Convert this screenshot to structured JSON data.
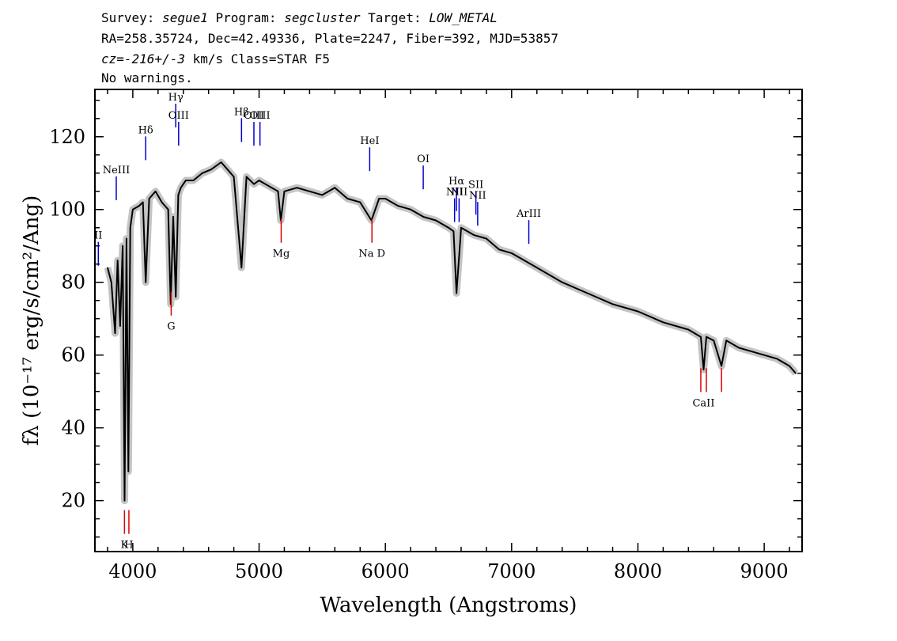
{
  "header": {
    "line1": {
      "k1": "Survey: ",
      "v1": "segue1",
      "k2": " Program: ",
      "v2": "segcluster",
      "k3": " Target: ",
      "v3": "LOW_METAL"
    },
    "line2": "RA=258.35724, Dec=42.49336, Plate=2247, Fiber=392, MJD=53857",
    "line3": {
      "v1": "cz=-216+/-3",
      "rest": " km/s Class=STAR F5"
    },
    "line4": "No warnings."
  },
  "chart_data": {
    "type": "line",
    "xlabel": "Wavelength (Angstroms)",
    "ylabel": "fλ (10⁻¹⁷ erg/s/cm²/Ang)",
    "xlim": [
      3700,
      9300
    ],
    "ylim": [
      6,
      133
    ],
    "x_ticks": [
      4000,
      5000,
      6000,
      7000,
      8000,
      9000
    ],
    "x_tick_labels": [
      "4000",
      "5000",
      "6000",
      "7000",
      "8000",
      "9000"
    ],
    "y_ticks": [
      20,
      40,
      60,
      80,
      100,
      120
    ],
    "y_tick_labels": [
      "20",
      "40",
      "60",
      "80",
      "100",
      "120"
    ],
    "series": [
      {
        "role": "flux",
        "color": "#000000",
        "x": [
          3800,
          3830,
          3860,
          3880,
          3900,
          3920,
          3935,
          3950,
          3965,
          3980,
          4000,
          4050,
          4080,
          4102,
          4130,
          4180,
          4230,
          4280,
          4300,
          4320,
          4340,
          4360,
          4380,
          4420,
          4480,
          4550,
          4620,
          4700,
          4750,
          4800,
          4861,
          4900,
          4960,
          5000,
          5100,
          5150,
          5172,
          5200,
          5300,
          5400,
          5500,
          5600,
          5700,
          5800,
          5890,
          5950,
          6000,
          6100,
          6200,
          6300,
          6400,
          6500,
          6540,
          6563,
          6600,
          6700,
          6800,
          6900,
          7000,
          7200,
          7400,
          7600,
          7800,
          8000,
          8200,
          8400,
          8498,
          8520,
          8542,
          8600,
          8662,
          8700,
          8800,
          8900,
          9000,
          9100,
          9200,
          9250
        ],
        "y": [
          84,
          80,
          66,
          86,
          68,
          90,
          20,
          92,
          28,
          95,
          100,
          101,
          102,
          80,
          103,
          105,
          102,
          100,
          74,
          98,
          76,
          104,
          106,
          108,
          108,
          110,
          111,
          113,
          111,
          109,
          84,
          109,
          107,
          108,
          106,
          105,
          97,
          105,
          106,
          105,
          104,
          106,
          103,
          102,
          97,
          103,
          103,
          101,
          100,
          98,
          97,
          95,
          94,
          77,
          95,
          93,
          92,
          89,
          88,
          84,
          80,
          77,
          74,
          72,
          69,
          67,
          65,
          56,
          65,
          64,
          57,
          64,
          62,
          61,
          60,
          59,
          57,
          55
        ]
      }
    ],
    "emission_lines": [
      {
        "label": "II",
        "x": 3727,
        "y": 95
      },
      {
        "label": "NeIII",
        "x": 3869,
        "y": 113
      },
      {
        "label": "Hδ",
        "x": 4102,
        "y": 124
      },
      {
        "label": "Hγ",
        "x": 4340,
        "y": 133
      },
      {
        "label": "OIII",
        "x": 4363,
        "y": 128
      },
      {
        "label": "Hβ",
        "x": 4861,
        "y": 129
      },
      {
        "label": "OIII",
        "x": 4959,
        "y": 128
      },
      {
        "label": "OIII",
        "x": 5007,
        "y": 128
      },
      {
        "label": "HeI",
        "x": 5876,
        "y": 121
      },
      {
        "label": "OI",
        "x": 6300,
        "y": 116
      },
      {
        "label": "NII",
        "x": 6548,
        "y": 107
      },
      {
        "label": "Hα",
        "x": 6563,
        "y": 110
      },
      {
        "label": "NII",
        "x": 6584,
        "y": 107
      },
      {
        "label": "SII",
        "x": 6717,
        "y": 109
      },
      {
        "label": "NII",
        "x": 6731,
        "y": 106
      },
      {
        "label": "ArIII",
        "x": 7136,
        "y": 101
      }
    ],
    "absorption_lines": [
      {
        "label": "K",
        "x": 3934,
        "y": 10
      },
      {
        "label": "H",
        "x": 3969,
        "y": 10
      },
      {
        "label": "G",
        "x": 4304,
        "y": 70
      },
      {
        "label": "Mg",
        "x": 5175,
        "y": 90
      },
      {
        "label": "Na D",
        "x": 5894,
        "y": 90
      },
      {
        "label": "CaII",
        "x": 8498,
        "y": 49
      },
      {
        "label": "CaII",
        "x": 8542,
        "y": 49
      },
      {
        "label": "CaII",
        "x": 8662,
        "y": 49
      }
    ],
    "colors": {
      "flux": "#000000",
      "error": "#bebebe",
      "emission": "#0000cc",
      "absorption": "#dd0000"
    }
  }
}
